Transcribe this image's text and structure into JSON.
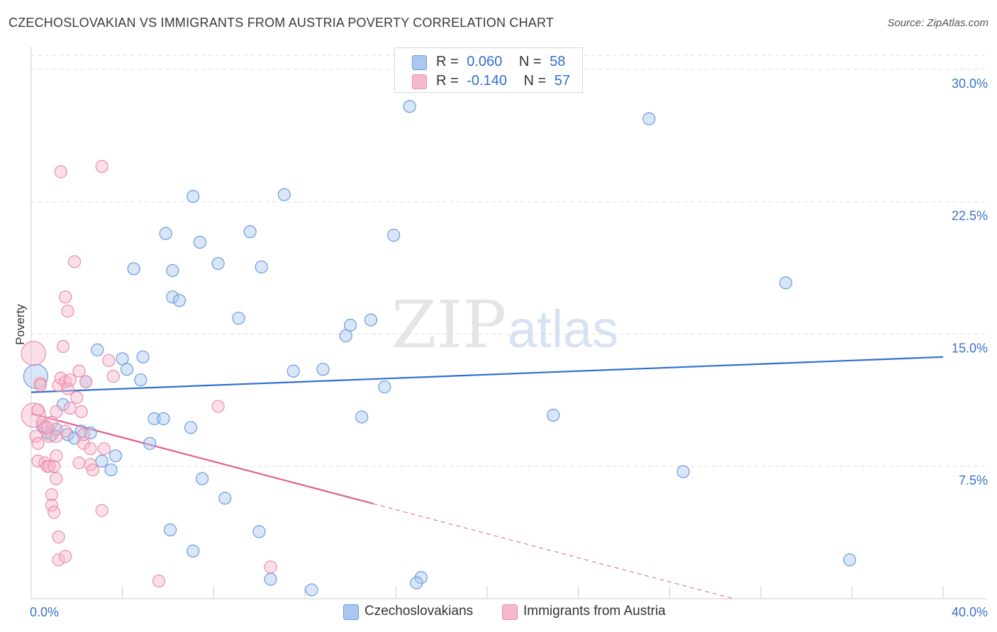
{
  "title": "CZECHOSLOVAKIAN VS IMMIGRANTS FROM AUSTRIA POVERTY CORRELATION CHART",
  "source": "Source: ZipAtlas.com",
  "watermark": {
    "zip": "ZIP",
    "atlas": "atlas"
  },
  "legend": {
    "rows": [
      {
        "r_label": "R =",
        "r_value": "0.060",
        "n_label": "N =",
        "n_value": "58"
      },
      {
        "r_label": "R =",
        "r_value": "-0.140",
        "n_label": "N =",
        "n_value": "57"
      }
    ]
  },
  "bottom_legend": [
    "Czechoslovakians",
    "Immigrants from Austria"
  ],
  "colors": {
    "blue_fill": "#a9c7f0",
    "blue_stroke": "#6b9be0",
    "blue_line": "#2f6fd1",
    "pink_fill": "#f6b8cb",
    "pink_stroke": "#e98fab",
    "pink_line": "#e0608d",
    "tick_text": "#3b72c8",
    "grid": "#dddddd"
  },
  "chart_data": {
    "type": "scatter",
    "title": "CZECHOSLOVAKIAN VS IMMIGRANTS FROM AUSTRIA POVERTY CORRELATION CHART",
    "xlabel": "",
    "ylabel": "Poverty",
    "xlim": [
      0,
      40
    ],
    "ylim": [
      0,
      30.8
    ],
    "x_tick_labels": [
      {
        "value": 0,
        "label": "0.0%"
      },
      {
        "value": 40,
        "label": "40.0%"
      }
    ],
    "y_tick_labels": [
      {
        "value": 7.5,
        "label": "7.5%"
      },
      {
        "value": 15.0,
        "label": "15.0%"
      },
      {
        "value": 22.5,
        "label": "22.5%"
      },
      {
        "value": 30.0,
        "label": "30.0%"
      }
    ],
    "series": [
      {
        "name": "Czechoslovakians",
        "color": "blue",
        "r": 0.06,
        "n": 58,
        "trend": {
          "x0": 0,
          "y0": 11.7,
          "x1": 40,
          "y1": 13.7,
          "dashed_from": null
        },
        "points": [
          {
            "x": 0.2,
            "y": 12.6,
            "size": "large"
          },
          {
            "x": 0.5,
            "y": 9.8
          },
          {
            "x": 0.7,
            "y": 9.4
          },
          {
            "x": 0.9,
            "y": 9.3
          },
          {
            "x": 1.1,
            "y": 9.6
          },
          {
            "x": 1.4,
            "y": 11.0
          },
          {
            "x": 1.6,
            "y": 9.3
          },
          {
            "x": 1.9,
            "y": 9.1
          },
          {
            "x": 2.2,
            "y": 9.5
          },
          {
            "x": 2.4,
            "y": 12.3
          },
          {
            "x": 2.6,
            "y": 9.4
          },
          {
            "x": 2.9,
            "y": 14.1
          },
          {
            "x": 3.1,
            "y": 7.8
          },
          {
            "x": 3.5,
            "y": 7.3
          },
          {
            "x": 3.7,
            "y": 8.1
          },
          {
            "x": 4.0,
            "y": 13.6
          },
          {
            "x": 4.2,
            "y": 13.0
          },
          {
            "x": 4.5,
            "y": 18.7
          },
          {
            "x": 4.8,
            "y": 12.4
          },
          {
            "x": 4.9,
            "y": 13.7
          },
          {
            "x": 5.2,
            "y": 8.8
          },
          {
            "x": 5.4,
            "y": 10.2
          },
          {
            "x": 5.8,
            "y": 10.2
          },
          {
            "x": 5.9,
            "y": 20.7
          },
          {
            "x": 6.1,
            "y": 3.9
          },
          {
            "x": 6.2,
            "y": 18.6
          },
          {
            "x": 6.2,
            "y": 17.1
          },
          {
            "x": 6.5,
            "y": 16.9
          },
          {
            "x": 7.0,
            "y": 9.7
          },
          {
            "x": 7.4,
            "y": 20.2
          },
          {
            "x": 7.1,
            "y": 22.8
          },
          {
            "x": 7.1,
            "y": 2.7
          },
          {
            "x": 8.2,
            "y": 19.0
          },
          {
            "x": 7.5,
            "y": 6.8
          },
          {
            "x": 8.5,
            "y": 5.7
          },
          {
            "x": 9.1,
            "y": 15.9
          },
          {
            "x": 9.6,
            "y": 20.8
          },
          {
            "x": 10.1,
            "y": 18.8
          },
          {
            "x": 10.0,
            "y": 3.8
          },
          {
            "x": 10.5,
            "y": 1.1
          },
          {
            "x": 11.1,
            "y": 22.9
          },
          {
            "x": 11.5,
            "y": 12.9
          },
          {
            "x": 12.3,
            "y": 0.5
          },
          {
            "x": 12.8,
            "y": 13.0
          },
          {
            "x": 13.8,
            "y": 14.9
          },
          {
            "x": 14.0,
            "y": 15.5
          },
          {
            "x": 14.5,
            "y": 10.3
          },
          {
            "x": 14.9,
            "y": 15.8
          },
          {
            "x": 15.5,
            "y": 12.0
          },
          {
            "x": 15.9,
            "y": 20.6
          },
          {
            "x": 16.6,
            "y": 27.9
          },
          {
            "x": 17.1,
            "y": 1.2
          },
          {
            "x": 16.9,
            "y": 0.9
          },
          {
            "x": 22.9,
            "y": 10.4
          },
          {
            "x": 27.1,
            "y": 27.2
          },
          {
            "x": 28.6,
            "y": 7.2
          },
          {
            "x": 33.1,
            "y": 17.9
          },
          {
            "x": 35.9,
            "y": 2.2
          }
        ]
      },
      {
        "name": "Immigrants from Austria",
        "color": "pink",
        "r": -0.14,
        "n": 57,
        "trend": {
          "x0": 0,
          "y0": 10.5,
          "x1": 30.8,
          "y1": 0,
          "dashed_from": 15.0
        },
        "points": [
          {
            "x": 0.1,
            "y": 13.9,
            "size": "large"
          },
          {
            "x": 0.1,
            "y": 10.4,
            "size": "large"
          },
          {
            "x": 0.2,
            "y": 9.2
          },
          {
            "x": 0.3,
            "y": 10.7
          },
          {
            "x": 0.3,
            "y": 8.8
          },
          {
            "x": 0.3,
            "y": 7.8
          },
          {
            "x": 0.4,
            "y": 12.2
          },
          {
            "x": 0.5,
            "y": 10.0
          },
          {
            "x": 0.6,
            "y": 9.7
          },
          {
            "x": 0.6,
            "y": 7.7
          },
          {
            "x": 0.7,
            "y": 7.5
          },
          {
            "x": 0.8,
            "y": 9.2
          },
          {
            "x": 0.8,
            "y": 7.5
          },
          {
            "x": 0.9,
            "y": 10.0
          },
          {
            "x": 0.9,
            "y": 5.9
          },
          {
            "x": 0.9,
            "y": 5.3
          },
          {
            "x": 1.0,
            "y": 7.5
          },
          {
            "x": 1.1,
            "y": 9.2
          },
          {
            "x": 1.0,
            "y": 4.9
          },
          {
            "x": 1.1,
            "y": 6.8
          },
          {
            "x": 1.1,
            "y": 8.1
          },
          {
            "x": 1.1,
            "y": 10.6
          },
          {
            "x": 1.2,
            "y": 2.2
          },
          {
            "x": 1.2,
            "y": 3.5
          },
          {
            "x": 1.2,
            "y": 12.1
          },
          {
            "x": 1.3,
            "y": 24.2
          },
          {
            "x": 1.3,
            "y": 12.5
          },
          {
            "x": 1.4,
            "y": 14.3
          },
          {
            "x": 1.5,
            "y": 2.4
          },
          {
            "x": 1.5,
            "y": 12.3
          },
          {
            "x": 1.5,
            "y": 9.5
          },
          {
            "x": 1.5,
            "y": 17.1
          },
          {
            "x": 1.6,
            "y": 11.9
          },
          {
            "x": 1.6,
            "y": 16.3
          },
          {
            "x": 1.7,
            "y": 12.4
          },
          {
            "x": 1.7,
            "y": 10.8
          },
          {
            "x": 1.9,
            "y": 19.1
          },
          {
            "x": 2.0,
            "y": 11.4
          },
          {
            "x": 2.1,
            "y": 12.9
          },
          {
            "x": 2.1,
            "y": 7.7
          },
          {
            "x": 2.2,
            "y": 10.6
          },
          {
            "x": 2.3,
            "y": 8.8
          },
          {
            "x": 2.4,
            "y": 12.3
          },
          {
            "x": 2.6,
            "y": 8.5
          },
          {
            "x": 2.6,
            "y": 7.6
          },
          {
            "x": 2.7,
            "y": 7.3
          },
          {
            "x": 3.1,
            "y": 5.0
          },
          {
            "x": 3.1,
            "y": 24.5
          },
          {
            "x": 3.2,
            "y": 8.5
          },
          {
            "x": 3.4,
            "y": 13.5
          },
          {
            "x": 3.6,
            "y": 12.6
          },
          {
            "x": 5.6,
            "y": 1.0
          },
          {
            "x": 8.2,
            "y": 10.9
          },
          {
            "x": 10.5,
            "y": 1.8
          },
          {
            "x": 0.4,
            "y": 12.1
          },
          {
            "x": 0.7,
            "y": 9.7
          },
          {
            "x": 2.3,
            "y": 9.3
          }
        ]
      }
    ]
  }
}
